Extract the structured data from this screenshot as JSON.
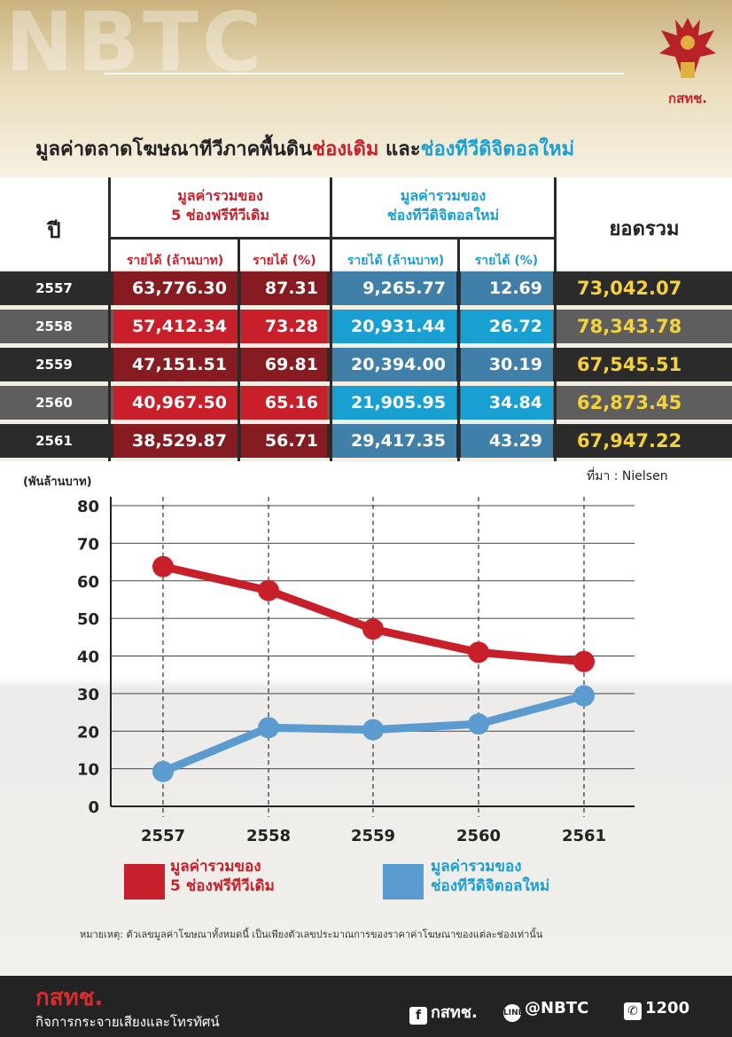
{
  "watermark": "NBTC",
  "logo_text": "กสทช.",
  "title": {
    "part1": "มูลค่าตลาดโฆษณาทีวีภาคพื้นดิน",
    "part_red": "ช่องเดิม",
    "part_mid": " และ",
    "part_blue": "ช่องทีวีดิจิตอลใหม่"
  },
  "table": {
    "year_header": "ปี",
    "group1": [
      "มูลค่ารวมของ",
      "5 ช่องฟรีทีวีเดิม"
    ],
    "group2": [
      "มูลค่ารวมของ",
      "ช่องทีวีดิจิตอลใหม่"
    ],
    "total_header": "ยอดรวม",
    "sub_revenue": "รายได้ (ล้านบาท)",
    "sub_percent": "รายได้ (%)",
    "rows": [
      {
        "year": "2557",
        "old_rev": "63,776.30",
        "old_pct": "87.31",
        "new_rev": "9,265.77",
        "new_pct": "12.69",
        "total": "73,042.07"
      },
      {
        "year": "2558",
        "old_rev": "57,412.34",
        "old_pct": "73.28",
        "new_rev": "20,931.44",
        "new_pct": "26.72",
        "total": "78,343.78"
      },
      {
        "year": "2559",
        "old_rev": "47,151.51",
        "old_pct": "69.81",
        "new_rev": "20,394.00",
        "new_pct": "30.19",
        "total": "67,545.51"
      },
      {
        "year": "2560",
        "old_rev": "40,967.50",
        "old_pct": "65.16",
        "new_rev": "21,905.95",
        "new_pct": "34.84",
        "total": "62,873.45"
      },
      {
        "year": "2561",
        "old_rev": "38,529.87",
        "old_pct": "56.71",
        "new_rev": "29,417.35",
        "new_pct": "43.29",
        "total": "67,947.22"
      }
    ]
  },
  "source": "ที่มา : Nielsen",
  "chart_data": {
    "type": "line",
    "ylabel": "(พันล้านบาท)",
    "ylim": [
      0,
      80
    ],
    "yticks": [
      "0",
      "10",
      "20",
      "30",
      "40",
      "50",
      "60",
      "70",
      "80"
    ],
    "categories": [
      "2557",
      "2558",
      "2559",
      "2560",
      "2561"
    ],
    "grid": true,
    "series": [
      {
        "name": "มูลค่ารวมของ 5 ช่องฟรีทีวีเดิม",
        "color": "#c8202a",
        "values": [
          63.78,
          57.41,
          47.15,
          40.97,
          38.53
        ]
      },
      {
        "name": "มูลค่ารวมของ ช่องทีวีดิจิตอลใหม่",
        "color": "#5b9bd0",
        "values": [
          9.27,
          20.93,
          20.39,
          21.91,
          29.42
        ]
      }
    ]
  },
  "legend": {
    "old_l1": "มูลค่ารวมของ",
    "old_l2": "5 ช่องฟรีทีวีเดิม",
    "new_l1": "มูลค่ารวมของ",
    "new_l2": "ช่องทีวีดิจิตอลใหม่"
  },
  "note": "หมายเหตุ: ตัวเลขมูลค่าโฆษณาทั้งหมดนี้ เป็นเพียงตัวเลขประมาณการของราคาค่าโฆษณาของแต่ละช่องเท่านั้น",
  "footer": {
    "logo": "กสทช.",
    "org": "กิจการกระจายเสียงและโทรทัศน์",
    "facebook": "กสทช.",
    "line": "@NBTC",
    "phone": "1200"
  },
  "colors": {
    "dark_row": "#2b2b2b",
    "light_row": "#5e5e5e",
    "red_dark": "#861c22",
    "red_bright": "#c8202a",
    "blue_dark": "#3f7fa8",
    "blue_bright": "#1a9fd3",
    "total_text": "#f6d23a"
  }
}
